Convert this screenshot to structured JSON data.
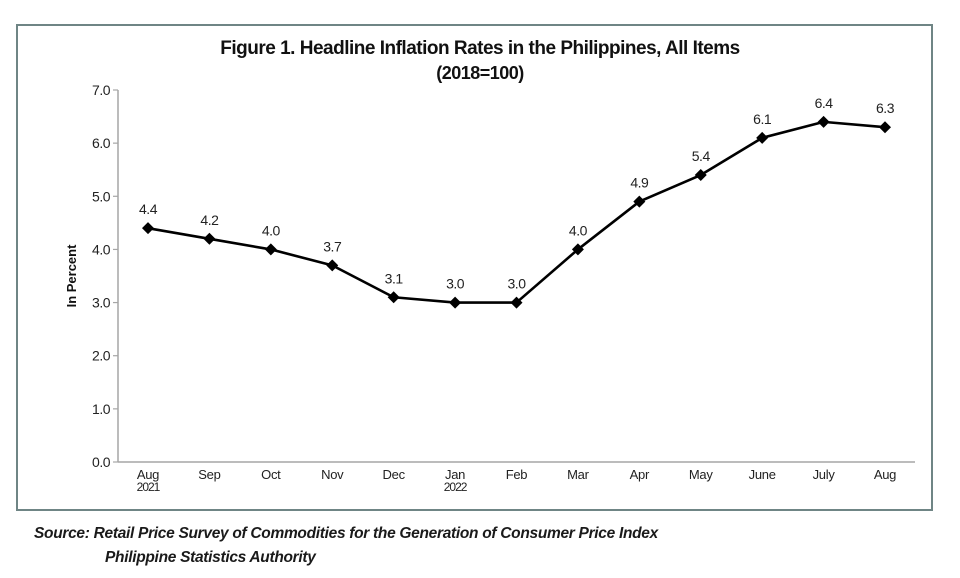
{
  "chart_data": {
    "type": "line",
    "title": "Figure 1. Headline Inflation Rates in the Philippines, All Items",
    "subtitle": "(2018=100)",
    "xlabel": "",
    "ylabel": "In Percent",
    "ylim": [
      0,
      7
    ],
    "yticks": [
      0.0,
      1.0,
      2.0,
      3.0,
      4.0,
      5.0,
      6.0,
      7.0
    ],
    "ytick_labels": [
      "0.0",
      "1.0",
      "2.0",
      "3.0",
      "4.0",
      "5.0",
      "6.0",
      "7.0"
    ],
    "categories": [
      "Aug",
      "Sep",
      "Oct",
      "Nov",
      "Dec",
      "Jan",
      "Feb",
      "Mar",
      "Apr",
      "May",
      "June",
      "July",
      "Aug"
    ],
    "category_sublabels": [
      "2021",
      "",
      "",
      "",
      "",
      "2022",
      "",
      "",
      "",
      "",
      "",
      "",
      ""
    ],
    "grid": false,
    "legend": "none",
    "series": [
      {
        "name": "Headline Inflation Rate",
        "marker": "diamond",
        "color": "#000000",
        "values": [
          4.4,
          4.2,
          4.0,
          3.7,
          3.1,
          3.0,
          3.0,
          4.0,
          4.9,
          5.4,
          6.1,
          6.4,
          6.3
        ],
        "data_labels": [
          "4.4",
          "4.2",
          "4.0",
          "3.7",
          "3.1",
          "3.0",
          "3.0",
          "4.0",
          "4.9",
          "5.4",
          "6.1",
          "6.4",
          "6.3"
        ]
      }
    ]
  },
  "source": {
    "line1": "Source: Retail Price Survey of Commodities for the Generation of Consumer Price Index",
    "line2": "Philippine Statistics Authority"
  },
  "colors": {
    "frame_border": "#6f8585",
    "axis": "#a6a6a6",
    "line": "#000000",
    "text": "#111111"
  }
}
